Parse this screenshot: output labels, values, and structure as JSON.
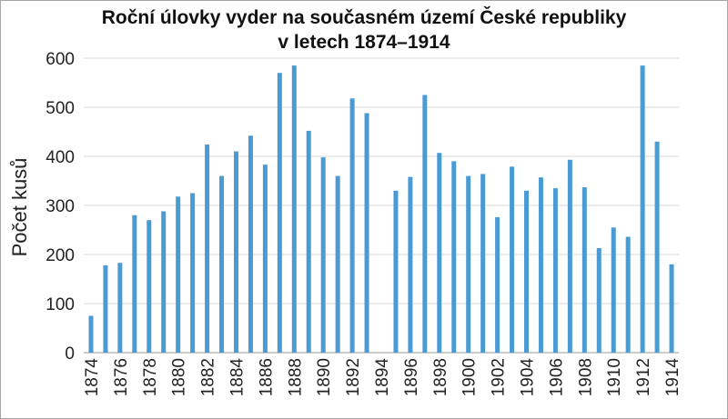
{
  "chart_data": {
    "type": "bar",
    "title": [
      "Roční úlovky vyder na současném území České republiky",
      "v letech 1874–1914"
    ],
    "xlabel": "",
    "ylabel": "Počet kusů",
    "ylim": [
      0,
      600
    ],
    "yticks": [
      0,
      100,
      200,
      300,
      400,
      500,
      600
    ],
    "grid": "horizontal",
    "color": "#4a9ad4",
    "categories": [
      "1874",
      "1875",
      "1876",
      "1877",
      "1878",
      "1879",
      "1880",
      "1881",
      "1882",
      "1883",
      "1884",
      "1885",
      "1886",
      "1887",
      "1888",
      "1889",
      "1890",
      "1891",
      "1892",
      "1893",
      "1894",
      "1895",
      "1896",
      "1897",
      "1898",
      "1899",
      "1900",
      "1901",
      "1902",
      "1903",
      "1904",
      "1905",
      "1906",
      "1907",
      "1908",
      "1909",
      "1910",
      "1911",
      "1912",
      "1913",
      "1914"
    ],
    "tick_labels": [
      "1874",
      "1876",
      "1878",
      "1880",
      "1882",
      "1884",
      "1886",
      "1888",
      "1890",
      "1892",
      "1894",
      "1896",
      "1898",
      "1900",
      "1902",
      "1904",
      "1906",
      "1908",
      "1910",
      "1912",
      "1914"
    ],
    "values": [
      75,
      178,
      183,
      280,
      270,
      288,
      318,
      325,
      424,
      360,
      410,
      442,
      383,
      570,
      585,
      452,
      398,
      360,
      518,
      488,
      null,
      330,
      358,
      525,
      407,
      390,
      360,
      364,
      276,
      379,
      330,
      357,
      335,
      393,
      337,
      213,
      255,
      236,
      585,
      430,
      180
    ]
  }
}
